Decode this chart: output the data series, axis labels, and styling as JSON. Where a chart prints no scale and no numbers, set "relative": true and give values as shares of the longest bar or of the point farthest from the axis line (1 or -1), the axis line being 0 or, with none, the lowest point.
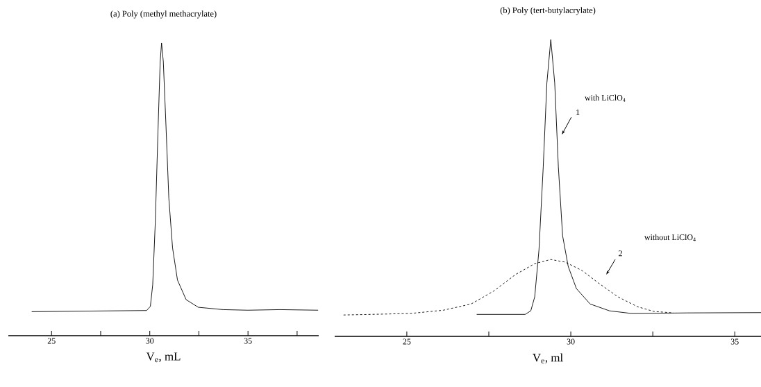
{
  "chart_data": [
    {
      "type": "line",
      "title": "(a) Poly (methyl methacrylate)",
      "xlabel": "V$_{e}$, mL",
      "relative": true,
      "xlim": [
        22.8,
        38.6
      ],
      "xticks": [
        25,
        {
          "value": 27.5,
          "label": null
        },
        30,
        {
          "value": 32.5,
          "label": null
        },
        35,
        {
          "value": 37.5,
          "label": null
        }
      ],
      "series": [
        {
          "color": "#000000",
          "line_style": "solid",
          "x": [
            23.99,
            29.84,
            30.03,
            30.15,
            30.28,
            30.43,
            30.53,
            30.6,
            30.69,
            30.82,
            30.97,
            31.16,
            31.41,
            31.85,
            32.47,
            33.73,
            34.99,
            36.62,
            38.57
          ],
          "values": [
            0.082,
            0.086,
            0.1,
            0.174,
            0.386,
            0.725,
            0.936,
            1.0,
            0.936,
            0.725,
            0.47,
            0.3,
            0.19,
            0.123,
            0.097,
            0.089,
            0.087,
            0.089,
            0.087
          ]
        }
      ]
    },
    {
      "type": "line",
      "title": "(b) Poly (tert-butylacrylate)",
      "xlabel": "V$_{e}$, ml",
      "relative": true,
      "xlim": [
        22.8,
        35.8
      ],
      "xticks": [
        25,
        {
          "value": 27.5,
          "label": null
        },
        30,
        {
          "value": 32.5,
          "label": null
        },
        35
      ],
      "series": [
        {
          "color": "#000000",
          "line_style": "solid",
          "x": [
            27.13,
            28.61,
            28.78,
            28.9,
            29.03,
            29.16,
            29.27,
            29.39,
            29.51,
            29.62,
            29.75,
            29.92,
            30.17,
            30.59,
            31.18,
            31.86,
            33.55,
            35.8
          ],
          "values": [
            0.074,
            0.074,
            0.086,
            0.133,
            0.292,
            0.572,
            0.853,
            1.0,
            0.853,
            0.572,
            0.339,
            0.236,
            0.161,
            0.109,
            0.086,
            0.077,
            0.079,
            0.08
          ]
        },
        {
          "color": "#000000",
          "line_style": "dashed",
          "x": [
            23.07,
            25.1,
            26.11,
            26.96,
            27.64,
            28.31,
            28.9,
            29.39,
            29.83,
            30.34,
            30.84,
            31.44,
            32.03,
            32.53,
            33.13
          ],
          "values": [
            0.072,
            0.077,
            0.088,
            0.109,
            0.152,
            0.208,
            0.245,
            0.259,
            0.25,
            0.222,
            0.18,
            0.133,
            0.1,
            0.084,
            0.079
          ]
        }
      ],
      "annotations": [
        "with LiClO$_{4}$",
        "1",
        "without LiClO$_{4}$",
        "2"
      ]
    }
  ]
}
